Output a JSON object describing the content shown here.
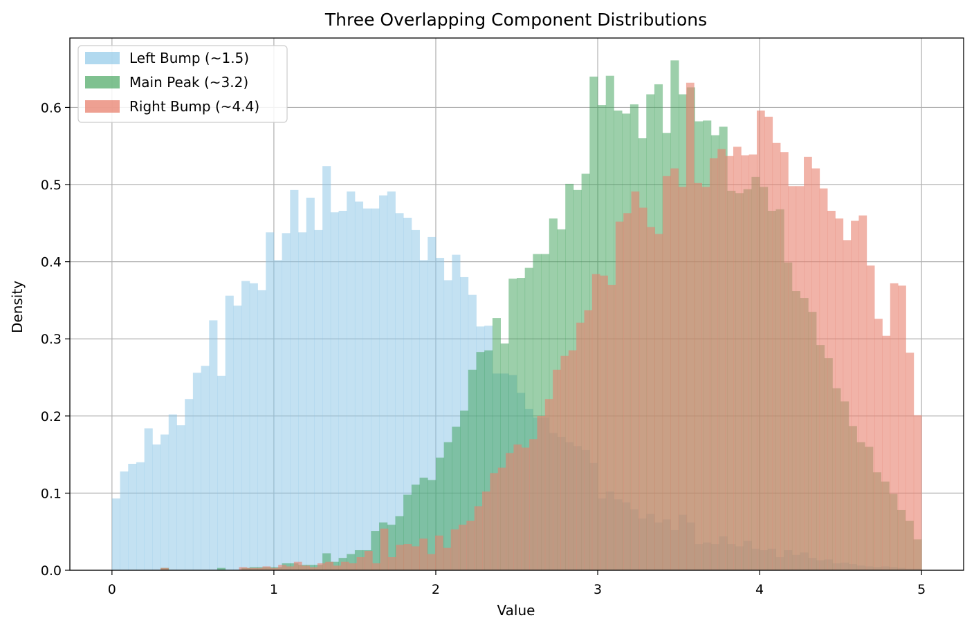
{
  "chart_data": {
    "type": "histogram",
    "title": "Three Overlapping Component Distributions",
    "xlabel": "Value",
    "ylabel": "Density",
    "xlim": [
      -0.26,
      5.26
    ],
    "ylim": [
      0.0,
      0.69
    ],
    "x_ticks": [
      0,
      1,
      2,
      3,
      4,
      5
    ],
    "y_ticks": [
      0.0,
      0.1,
      0.2,
      0.3,
      0.4,
      0.5,
      0.6
    ],
    "grid": true,
    "legend_position": "top-left",
    "bin_edges": {
      "start": 0.0,
      "end": 5.0,
      "bins": 100
    },
    "series": [
      {
        "name": "Left Bump (~1.5)",
        "color": "#87c4e6",
        "alpha": 0.5,
        "values": [
          0.093,
          0.128,
          0.138,
          0.14,
          0.184,
          0.163,
          0.176,
          0.202,
          0.188,
          0.222,
          0.256,
          0.265,
          0.324,
          0.252,
          0.356,
          0.343,
          0.375,
          0.372,
          0.363,
          0.438,
          0.402,
          0.437,
          0.493,
          0.438,
          0.483,
          0.441,
          0.524,
          0.464,
          0.466,
          0.491,
          0.478,
          0.469,
          0.469,
          0.486,
          0.491,
          0.463,
          0.457,
          0.441,
          0.402,
          0.432,
          0.405,
          0.376,
          0.409,
          0.38,
          0.357,
          0.316,
          0.317,
          0.255,
          0.255,
          0.253,
          0.23,
          0.209,
          0.198,
          0.198,
          0.178,
          0.173,
          0.166,
          0.161,
          0.156,
          0.139,
          0.093,
          0.102,
          0.092,
          0.088,
          0.079,
          0.067,
          0.073,
          0.062,
          0.066,
          0.052,
          0.072,
          0.062,
          0.034,
          0.036,
          0.034,
          0.044,
          0.034,
          0.031,
          0.038,
          0.028,
          0.026,
          0.028,
          0.017,
          0.026,
          0.02,
          0.023,
          0.016,
          0.013,
          0.014,
          0.009,
          0.01,
          0.008,
          0.006,
          0.005,
          0.004,
          0.005,
          0.004,
          0.003,
          0.002,
          0.002
        ]
      },
      {
        "name": "Main Peak (~3.2)",
        "color": "#3aa055",
        "alpha": 0.5,
        "values": [
          0.0,
          0.0,
          0.0,
          0.0,
          0.0,
          0.0,
          0.003,
          0.0,
          0.0,
          0.0,
          0.0,
          0.0,
          0.0,
          0.003,
          0.0,
          0.0,
          0.003,
          0.004,
          0.004,
          0.004,
          0.004,
          0.009,
          0.009,
          0.007,
          0.007,
          0.007,
          0.022,
          0.011,
          0.016,
          0.021,
          0.026,
          0.026,
          0.051,
          0.062,
          0.059,
          0.07,
          0.098,
          0.111,
          0.12,
          0.117,
          0.146,
          0.166,
          0.186,
          0.207,
          0.26,
          0.283,
          0.285,
          0.327,
          0.294,
          0.378,
          0.379,
          0.392,
          0.41,
          0.41,
          0.456,
          0.442,
          0.501,
          0.493,
          0.514,
          0.64,
          0.603,
          0.641,
          0.596,
          0.592,
          0.604,
          0.56,
          0.617,
          0.63,
          0.567,
          0.661,
          0.617,
          0.626,
          0.582,
          0.583,
          0.564,
          0.575,
          0.492,
          0.489,
          0.494,
          0.51,
          0.497,
          0.466,
          0.468,
          0.399,
          0.362,
          0.353,
          0.335,
          0.292,
          0.275,
          0.236,
          0.219,
          0.187,
          0.166,
          0.16,
          0.127,
          0.115,
          0.099,
          0.078,
          0.064,
          0.04
        ]
      },
      {
        "name": "Right Bump (~4.4)",
        "color": "#e8806e",
        "alpha": 0.6,
        "values": [
          0.0,
          0.0,
          0.0,
          0.0,
          0.0,
          0.0,
          0.0,
          0.0,
          0.0,
          0.0,
          0.0,
          0.0,
          0.0,
          0.0,
          0.0,
          0.0,
          0.0,
          0.0,
          0.0,
          0.0,
          0.0,
          0.0,
          0.0,
          0.0,
          0.0,
          0.0,
          0.0,
          0.0,
          0.0,
          0.0,
          0.0,
          0.0,
          0.0,
          0.0,
          0.0,
          0.0,
          0.0,
          0.0,
          0.0,
          0.0,
          0.0,
          0.0,
          0.0,
          0.0,
          0.0,
          0.0,
          0.0,
          0.0,
          0.0,
          0.0,
          0.0,
          0.0,
          0.0,
          0.0,
          0.0,
          0.0,
          0.0,
          0.0,
          0.0,
          0.0,
          0.0,
          0.0,
          0.0,
          0.0,
          0.0,
          0.0,
          0.0,
          0.0,
          0.0,
          0.0,
          0.0,
          0.0,
          0.0,
          0.0,
          0.0,
          0.0,
          0.0,
          0.0,
          0.0,
          0.0,
          0.0,
          0.0,
          0.0,
          0.0,
          0.0,
          0.0,
          0.0,
          0.0,
          0.0,
          0.0,
          0.0,
          0.0,
          0.0,
          0.0,
          0.0,
          0.0,
          0.0,
          0.0,
          0.0,
          0.0
        ]
      }
    ],
    "right_bump_detail": {
      "bin_start": 0.3,
      "values": [
        0.003,
        0.0,
        0.0,
        0.0,
        0.0,
        0.0,
        0.0,
        0.0,
        0.0,
        0.0,
        0.004,
        0.003,
        0.003,
        0.005,
        0.003,
        0.007,
        0.005,
        0.011,
        0.006,
        0.004,
        0.009,
        0.011,
        0.006,
        0.011,
        0.009,
        0.017,
        0.025,
        0.009,
        0.054,
        0.017,
        0.033,
        0.034,
        0.031,
        0.041,
        0.021,
        0.045,
        0.029,
        0.053,
        0.059,
        0.064,
        0.083,
        0.102,
        0.126,
        0.133,
        0.152,
        0.163,
        0.159,
        0.17,
        0.2,
        0.222,
        0.26,
        0.278,
        0.285,
        0.321,
        0.337,
        0.384,
        0.382,
        0.37,
        0.452,
        0.463,
        0.491,
        0.47,
        0.445,
        0.436,
        0.511,
        0.521,
        0.497,
        0.632,
        0.502,
        0.497,
        0.534,
        0.546,
        0.537,
        0.549,
        0.538,
        0.539,
        0.596,
        0.588,
        0.554,
        0.542,
        0.498,
        0.498,
        0.536,
        0.521,
        0.495,
        0.466,
        0.456,
        0.428,
        0.453,
        0.46,
        0.395,
        0.326,
        0.304,
        0.372,
        0.369,
        0.282,
        0.201
      ]
    }
  }
}
